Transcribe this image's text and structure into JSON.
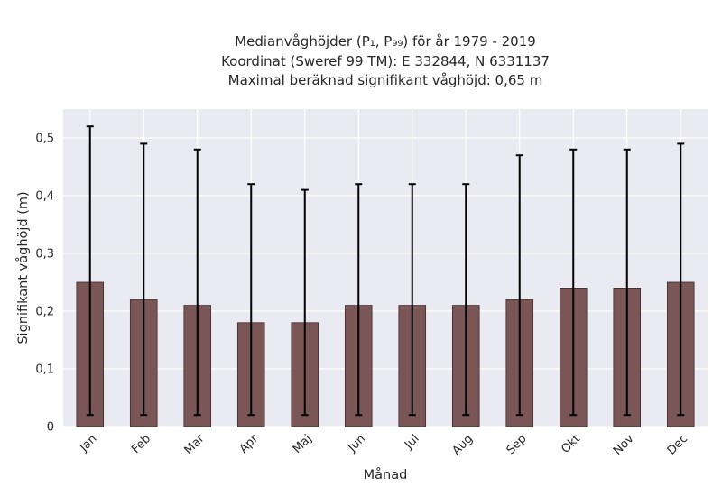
{
  "chart_data": {
    "type": "bar",
    "title_lines": [
      "Medianvåghöjder (P₁, P₉₉) för år 1979 - 2019",
      "Koordinat (Sweref 99 TM): E 332844, N 6331137",
      "Maximal beräknad signifikant våghöjd: 0,65 m"
    ],
    "xlabel": "Månad",
    "ylabel": "Signifikant våghöjd (m)",
    "categories": [
      "Jan",
      "Feb",
      "Mar",
      "Apr",
      "Maj",
      "Jun",
      "Jul",
      "Aug",
      "Sep",
      "Okt",
      "Nov",
      "Dec"
    ],
    "series": [
      {
        "values": [
          0.25,
          0.22,
          0.21,
          0.18,
          0.18,
          0.21,
          0.21,
          0.21,
          0.22,
          0.24,
          0.24,
          0.25
        ],
        "error_low": [
          0.02,
          0.02,
          0.02,
          0.02,
          0.02,
          0.02,
          0.02,
          0.02,
          0.02,
          0.02,
          0.02,
          0.02
        ],
        "error_high": [
          0.52,
          0.49,
          0.48,
          0.42,
          0.41,
          0.42,
          0.42,
          0.42,
          0.47,
          0.48,
          0.48,
          0.49
        ]
      }
    ],
    "ylim": [
      0,
      0.55
    ],
    "yticks": [
      0,
      0.1,
      0.2,
      0.3,
      0.4,
      0.5
    ],
    "ytick_labels": [
      "0",
      "0,1",
      "0,2",
      "0,3",
      "0,4",
      "0,5"
    ],
    "grid": true,
    "colors": {
      "bar_fill": "#7b5656",
      "bar_edge": "#3d2a2a",
      "error_bar": "#000000",
      "plot_background": "#eaeaf2",
      "grid": "#ffffff"
    }
  }
}
